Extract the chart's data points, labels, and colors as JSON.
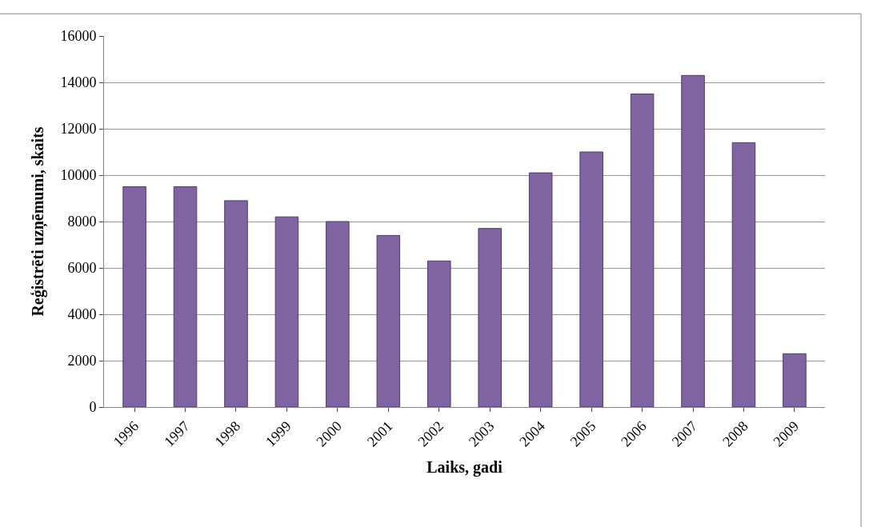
{
  "chart_data": {
    "type": "bar",
    "xlabel": "Laiks, gadi",
    "ylabel": "Reģistrēti uzņēmumi, skaits",
    "categories": [
      "1996",
      "1997",
      "1998",
      "1999",
      "2000",
      "2001",
      "2002",
      "2003",
      "2004",
      "2005",
      "2006",
      "2007",
      "2008",
      "2009"
    ],
    "values": [
      9500,
      9500,
      8900,
      8200,
      8000,
      7400,
      6300,
      7700,
      10100,
      11000,
      13500,
      14300,
      11400,
      2300
    ],
    "color": "#8064a2",
    "ylim": [
      0,
      16000
    ],
    "yticks": [
      0,
      2000,
      4000,
      6000,
      8000,
      10000,
      12000,
      14000,
      16000
    ],
    "grid": "y"
  }
}
